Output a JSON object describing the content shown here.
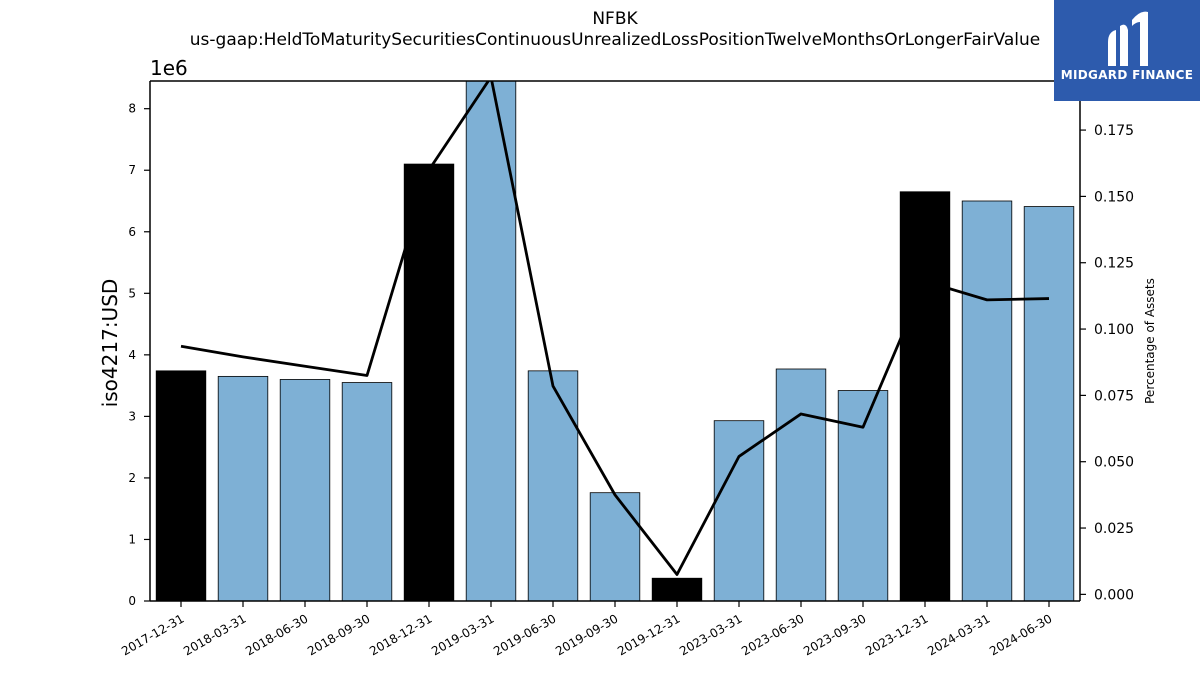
{
  "title_line1": "NFBK",
  "title_line2": "us-gaap:HeldToMaturitySecuritiesContinuousUnrealizedLossPositionTwelveMonthsOrLongerFairValue",
  "logo": {
    "text": "MIDGARD FINANCE",
    "color": "#2d5bad"
  },
  "chart_data": {
    "type": "bar",
    "categories": [
      "2017-12-31",
      "2018-03-31",
      "2018-06-30",
      "2018-09-30",
      "2018-12-31",
      "2019-03-31",
      "2019-06-30",
      "2019-09-30",
      "2019-12-31",
      "2023-03-31",
      "2023-06-30",
      "2023-09-30",
      "2023-12-31",
      "2024-03-31",
      "2024-06-30"
    ],
    "values": [
      3740000,
      3650000,
      3600000,
      3550000,
      7100000,
      8550000,
      3740000,
      1760000,
      370000,
      2930000,
      3770000,
      3420000,
      6650000,
      6500000,
      6410000
    ],
    "bar_colors": [
      "#000000",
      "#7eb0d5",
      "#7eb0d5",
      "#7eb0d5",
      "#000000",
      "#7eb0d5",
      "#7eb0d5",
      "#7eb0d5",
      "#000000",
      "#7eb0d5",
      "#7eb0d5",
      "#7eb0d5",
      "#000000",
      "#7eb0d5",
      "#7eb0d5"
    ],
    "line_values": [
      0.0935,
      0.0895,
      0.086,
      0.0825,
      0.16,
      0.195,
      0.0785,
      0.0375,
      0.0075,
      0.052,
      0.068,
      0.063,
      0.118,
      0.111,
      0.1115
    ],
    "ylabel": "iso4217:USD",
    "y_offset_label": "1e6",
    "y2label": "Percentage of Assets",
    "ylim": [
      0,
      8.45
    ],
    "y_ticks": [
      "0",
      "1",
      "2",
      "3",
      "4",
      "5",
      "6",
      "7",
      "8"
    ],
    "y2lim": [
      -0.0025,
      0.1935
    ],
    "y2_ticks": [
      "0.000",
      "0.025",
      "0.050",
      "0.075",
      "0.100",
      "0.125",
      "0.150",
      "0.175"
    ],
    "grid": false
  }
}
